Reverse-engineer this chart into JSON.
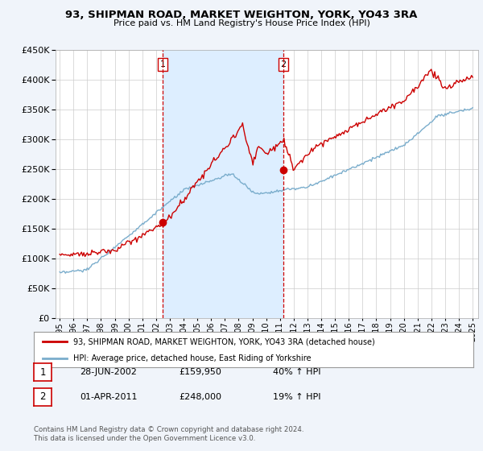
{
  "title": "93, SHIPMAN ROAD, MARKET WEIGHTON, YORK, YO43 3RA",
  "subtitle": "Price paid vs. HM Land Registry's House Price Index (HPI)",
  "ylim": [
    0,
    450000
  ],
  "yticks": [
    0,
    50000,
    100000,
    150000,
    200000,
    250000,
    300000,
    350000,
    400000,
    450000
  ],
  "xlim_start": 1994.7,
  "xlim_end": 2025.4,
  "background_color": "#f0f4fa",
  "plot_bg_color": "#ffffff",
  "shade_color": "#ddeeff",
  "grid_color": "#cccccc",
  "red_line_color": "#cc0000",
  "blue_line_color": "#7aadcc",
  "purchase1": {
    "date_x": 2002.49,
    "price": 159950,
    "label": "1"
  },
  "purchase2": {
    "date_x": 2011.25,
    "price": 248000,
    "label": "2"
  },
  "legend_line1": "93, SHIPMAN ROAD, MARKET WEIGHTON, YORK, YO43 3RA (detached house)",
  "legend_line2": "HPI: Average price, detached house, East Riding of Yorkshire",
  "table_rows": [
    {
      "label": "1",
      "date": "28-JUN-2002",
      "price": "£159,950",
      "change": "40% ↑ HPI"
    },
    {
      "label": "2",
      "date": "01-APR-2011",
      "price": "£248,000",
      "change": "19% ↑ HPI"
    }
  ],
  "footer": "Contains HM Land Registry data © Crown copyright and database right 2024.\nThis data is licensed under the Open Government Licence v3.0."
}
